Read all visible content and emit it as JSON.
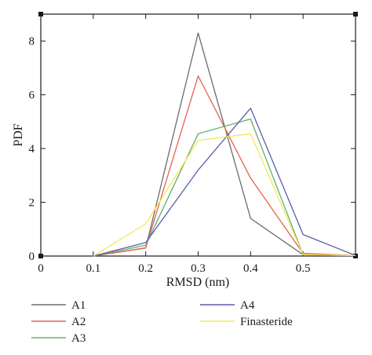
{
  "chart_data": {
    "type": "line",
    "xlabel": "RMSD (nm)",
    "ylabel": "PDF",
    "xlim": [
      0,
      0.6
    ],
    "ylim": [
      0,
      9
    ],
    "x_ticks": [
      0,
      0.1,
      0.2,
      0.3,
      0.4,
      0.5
    ],
    "x_tick_labels": [
      "0",
      "0.1",
      "0.2",
      "0.3",
      "0.4",
      "0.5"
    ],
    "y_ticks": [
      0,
      2,
      4,
      6,
      8
    ],
    "y_tick_labels": [
      "0",
      "2",
      "4",
      "6",
      "8"
    ],
    "grid": false,
    "legend_position": "bottom",
    "series": [
      {
        "name": "A1",
        "color": "#6b6b6b",
        "x": [
          0.1,
          0.2,
          0.3,
          0.4,
          0.5,
          0.6
        ],
        "y": [
          0.0,
          0.3,
          8.3,
          1.4,
          0.05,
          0.02
        ]
      },
      {
        "name": "A2",
        "color": "#e8604c",
        "x": [
          0.1,
          0.2,
          0.3,
          0.4,
          0.5,
          0.6
        ],
        "y": [
          0.0,
          0.3,
          6.7,
          2.9,
          0.1,
          0.02
        ]
      },
      {
        "name": "A3",
        "color": "#62b06a",
        "x": [
          0.1,
          0.2,
          0.3,
          0.4,
          0.5,
          0.6
        ],
        "y": [
          0.0,
          0.4,
          4.55,
          5.1,
          0.05,
          0.02
        ]
      },
      {
        "name": "A4",
        "color": "#5b5bb0",
        "x": [
          0.1,
          0.2,
          0.3,
          0.4,
          0.5,
          0.6
        ],
        "y": [
          0.0,
          0.5,
          3.2,
          5.5,
          0.8,
          0.02
        ]
      },
      {
        "name": "Finasteride",
        "color": "#f2ea55",
        "x": [
          0.1,
          0.2,
          0.3,
          0.4,
          0.5,
          0.6
        ],
        "y": [
          0.0,
          1.2,
          4.3,
          4.55,
          0.05,
          0.02
        ]
      }
    ]
  }
}
